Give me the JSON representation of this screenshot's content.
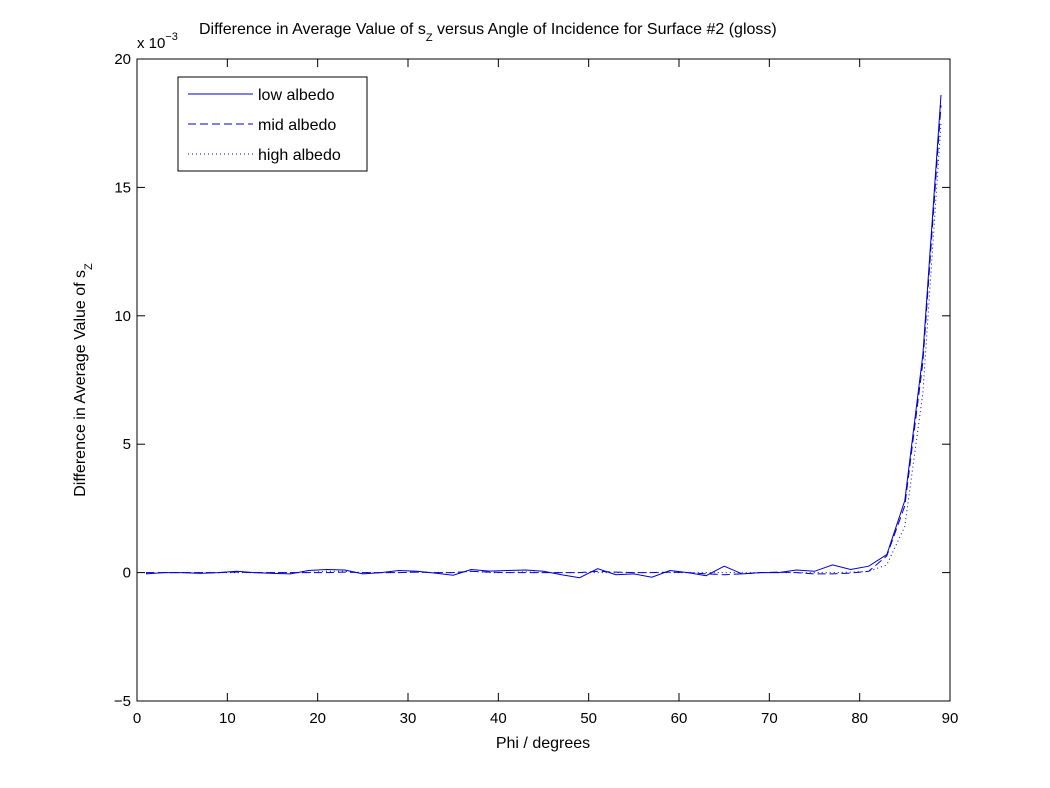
{
  "chart_data": {
    "type": "line",
    "title_prefix": "Difference in Average Value of s",
    "title_sub": "Z",
    "title_suffix": " versus Angle of Incidence for Surface #2 (gloss)",
    "xlabel": "Phi / degrees",
    "ylabel_prefix": "Difference in Average Value of s",
    "ylabel_sub": "Z",
    "exponent_base": "x 10",
    "exponent_power": "−3",
    "xlim": [
      0,
      90
    ],
    "ylim": [
      -5,
      20
    ],
    "xticks": [
      0,
      10,
      20,
      30,
      40,
      50,
      60,
      70,
      80,
      90
    ],
    "yticks": [
      -5,
      0,
      5,
      10,
      15,
      20
    ],
    "legend_position": "top-left",
    "x": [
      1,
      3,
      5,
      7,
      9,
      11,
      13,
      15,
      17,
      19,
      21,
      23,
      25,
      27,
      29,
      31,
      33,
      35,
      37,
      39,
      41,
      43,
      45,
      47,
      49,
      51,
      53,
      55,
      57,
      59,
      61,
      63,
      65,
      67,
      69,
      71,
      73,
      75,
      77,
      79,
      81,
      83,
      85,
      87,
      89
    ],
    "series": [
      {
        "name": "low albedo",
        "style": "solid",
        "color": "#0000cc",
        "values": [
          -0.05,
          0.0,
          0.0,
          -0.03,
          0.0,
          0.05,
          0.0,
          -0.03,
          -0.05,
          0.08,
          0.12,
          0.1,
          -0.05,
          0.0,
          0.08,
          0.05,
          -0.02,
          -0.1,
          0.12,
          0.06,
          0.08,
          0.1,
          0.05,
          -0.08,
          -0.2,
          0.15,
          -0.08,
          -0.05,
          -0.18,
          0.08,
          0.0,
          -0.12,
          0.25,
          -0.05,
          0.0,
          0.0,
          0.1,
          0.05,
          0.3,
          0.12,
          0.25,
          0.7,
          2.8,
          8.5,
          18.6
        ]
      },
      {
        "name": "mid albedo",
        "style": "dashed",
        "color": "#0000cc",
        "values": [
          0.0,
          0.0,
          0.0,
          0.0,
          0.0,
          0.02,
          0.0,
          0.0,
          0.0,
          0.0,
          0.0,
          0.02,
          0.0,
          0.0,
          0.0,
          0.02,
          0.0,
          0.0,
          0.05,
          0.02,
          0.0,
          0.0,
          0.0,
          0.0,
          0.0,
          0.05,
          0.02,
          0.0,
          0.0,
          0.02,
          0.0,
          -0.05,
          -0.08,
          -0.05,
          0.0,
          0.02,
          0.0,
          -0.05,
          -0.05,
          -0.02,
          0.05,
          0.65,
          2.6,
          8.2,
          18.2
        ]
      },
      {
        "name": "high albedo",
        "style": "dotted",
        "color": "#0000cc",
        "values": [
          -0.03,
          0.0,
          0.0,
          0.0,
          0.0,
          0.0,
          0.0,
          0.0,
          0.0,
          0.0,
          0.05,
          0.05,
          0.0,
          0.0,
          0.0,
          0.02,
          0.0,
          0.0,
          0.05,
          0.0,
          0.0,
          0.03,
          0.0,
          0.0,
          0.0,
          0.0,
          0.0,
          0.0,
          0.0,
          0.0,
          0.0,
          0.0,
          0.0,
          0.0,
          0.0,
          0.0,
          0.0,
          0.0,
          0.0,
          0.02,
          0.05,
          0.3,
          1.8,
          7.0,
          17.5
        ]
      }
    ]
  }
}
